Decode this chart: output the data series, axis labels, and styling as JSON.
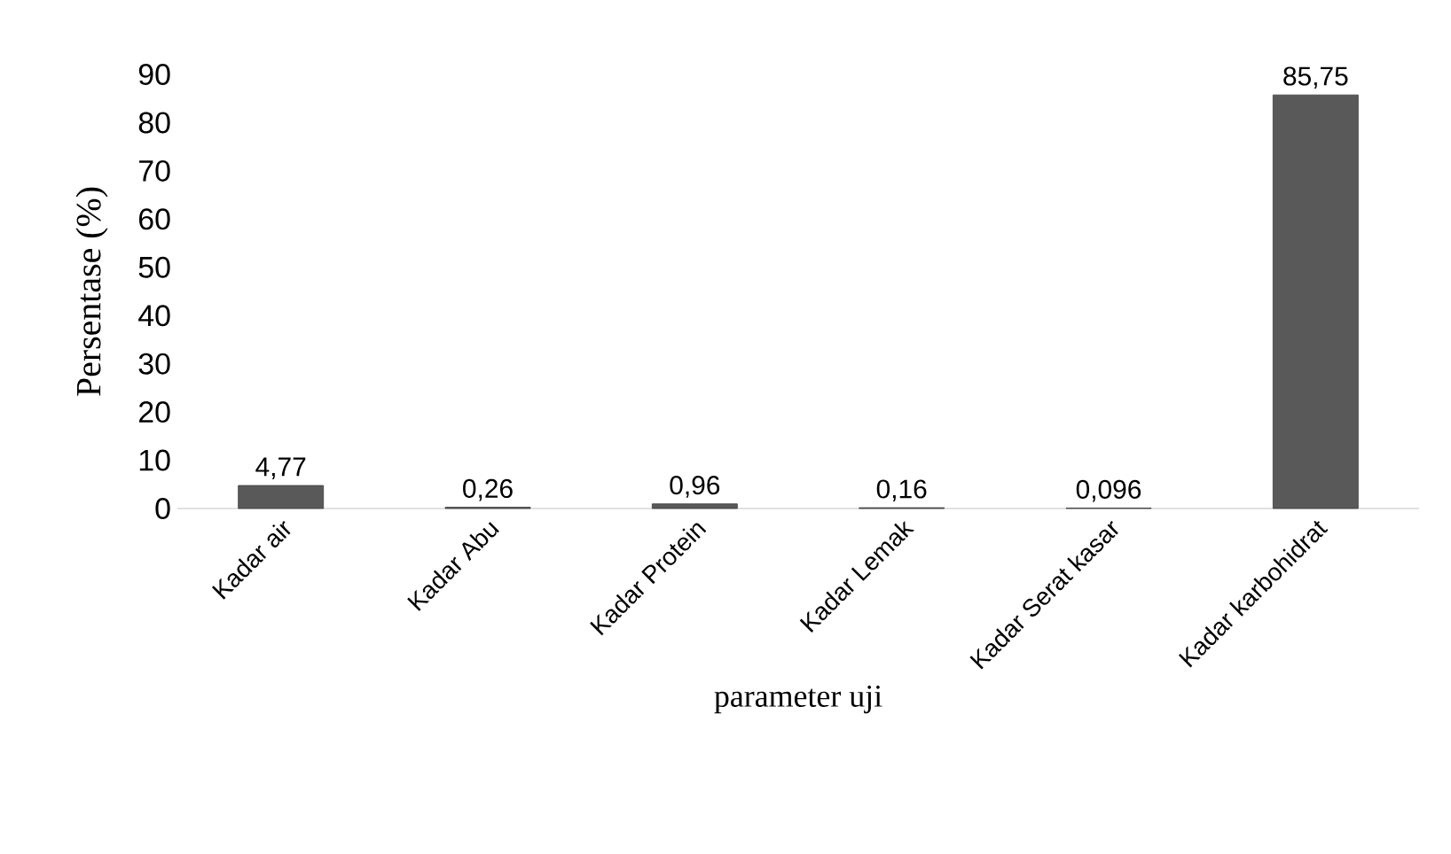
{
  "chart_data": {
    "type": "bar",
    "xlabel": "parameter uji",
    "ylabel": "Persentase (%)",
    "categories": [
      "Kadar air",
      "Kadar Abu",
      "Kadar Protein",
      "Kadar Lemak",
      "Kadar Serat kasar",
      "Kadar karbohidrat"
    ],
    "values": [
      4.77,
      0.26,
      0.96,
      0.16,
      0.096,
      85.75
    ],
    "value_labels": [
      "4,77",
      "0,26",
      "0,96",
      "0,16",
      "0,096",
      "85,75"
    ],
    "color": "#595959",
    "ylim": [
      0,
      90
    ],
    "yticks": [
      0,
      10,
      20,
      30,
      40,
      50,
      60,
      70,
      80,
      90
    ]
  }
}
